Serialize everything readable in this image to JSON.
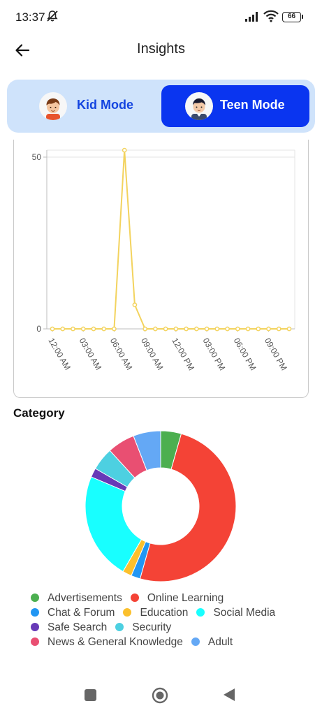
{
  "status_bar": {
    "time": "13:37",
    "battery": "66",
    "icons": [
      "mute-icon",
      "signal-icon",
      "wifi-icon",
      "battery-icon"
    ]
  },
  "header": {
    "title": "Insights",
    "back_icon": "arrow-left-icon"
  },
  "mode_toggle": {
    "kid_label": "Kid Mode",
    "teen_label": "Teen Mode",
    "active": "Teen Mode",
    "active_color": "#0a35f0",
    "inactive_bg": "#cfe3fb"
  },
  "chart_data": [
    {
      "type": "line",
      "title": "",
      "xlabel": "",
      "ylabel": "",
      "ylim": [
        0,
        50
      ],
      "y_ticks": [
        "0",
        "50"
      ],
      "x_tick_labels": [
        "12:00 AM",
        "03:00 AM",
        "06:00 AM",
        "09:00 AM",
        "12:00 PM",
        "03:00 PM",
        "06:00 PM",
        "09:00 PM"
      ],
      "x": [
        0,
        1,
        2,
        3,
        4,
        5,
        6,
        7,
        8,
        9,
        10,
        11,
        12,
        13,
        14,
        15,
        16,
        17,
        18,
        19,
        20,
        21,
        22,
        23
      ],
      "series": [
        {
          "color": "#f3d35e",
          "values": [
            0,
            0,
            0,
            0,
            0,
            0,
            0,
            52,
            7,
            0,
            0,
            0,
            0,
            0,
            0,
            0,
            0,
            0,
            0,
            0,
            0,
            0,
            0,
            0
          ]
        }
      ],
      "grid": true
    },
    {
      "type": "pie",
      "title": "Category",
      "donut": true,
      "categories": [
        "Advertisements",
        "Online Learning",
        "Chat & Forum",
        "Education",
        "Social Media",
        "Safe Search",
        "Security",
        "News & General Knowledge",
        "Adult"
      ],
      "values": [
        4.5,
        51,
        2,
        2,
        23.5,
        2,
        5,
        6,
        6
      ],
      "colors": [
        "#4caf50",
        "#f44336",
        "#2196f3",
        "#fbc02d",
        "#18ffff",
        "#673ab7",
        "#4dd0e1",
        "#e94f72",
        "#64a8f5"
      ]
    }
  ],
  "category_section": {
    "title": "Category"
  },
  "legend": {
    "rows": [
      [
        {
          "label": "Advertisements",
          "color": "#4caf50"
        },
        {
          "label": "Online Learning",
          "color": "#f44336"
        }
      ],
      [
        {
          "label": "Chat & Forum",
          "color": "#2196f3"
        },
        {
          "label": "Education",
          "color": "#fbc02d"
        },
        {
          "label": "Social Media",
          "color": "#18ffff"
        }
      ],
      [
        {
          "label": "Safe Search",
          "color": "#673ab7"
        },
        {
          "label": "Security",
          "color": "#4dd0e1"
        }
      ],
      [
        {
          "label": "News & General Knowledge",
          "color": "#e94f72"
        },
        {
          "label": "Adult",
          "color": "#64a8f5"
        }
      ]
    ]
  },
  "nav_bar": {
    "icons": [
      "recents-square-icon",
      "home-circle-icon",
      "back-triangle-icon"
    ]
  }
}
